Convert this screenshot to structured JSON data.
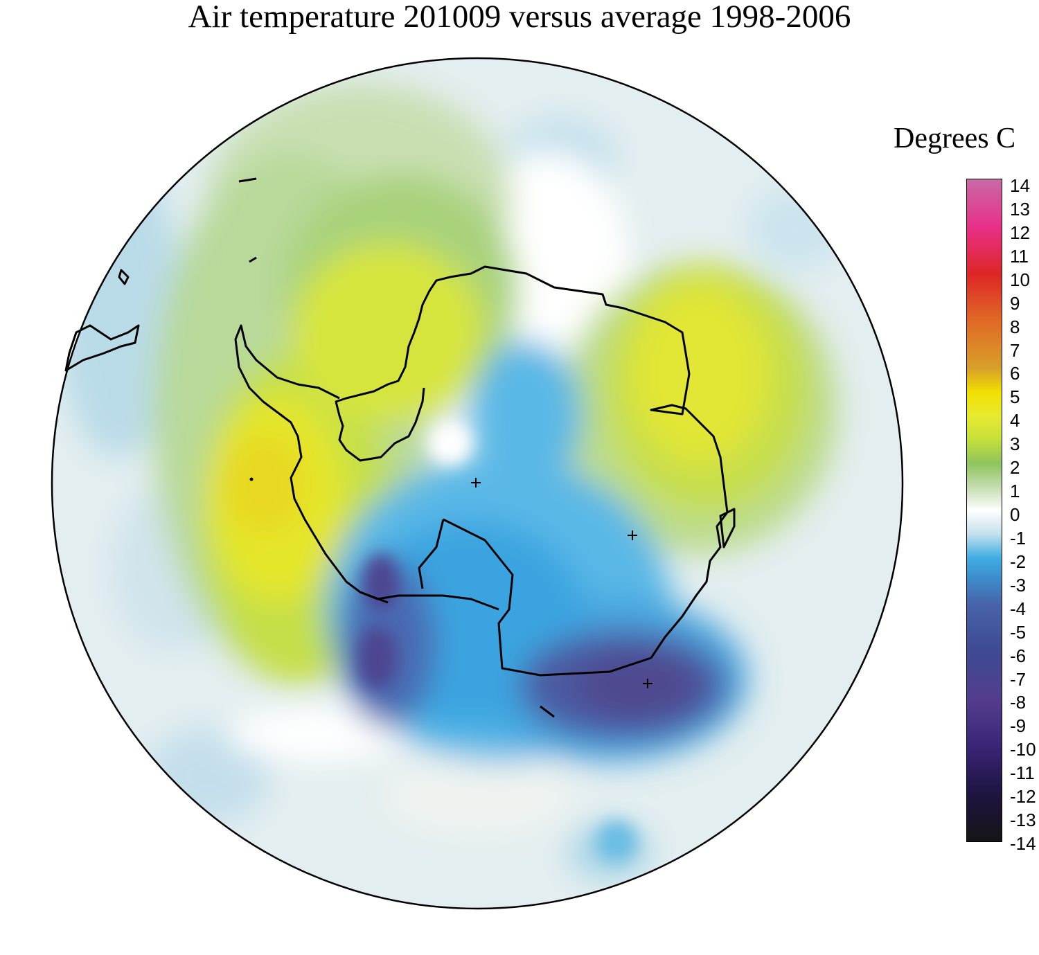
{
  "title": "Air temperature 201009 versus average 1998-2006",
  "legend": {
    "title": "Degrees C",
    "ticks": [
      "14",
      "13",
      "12",
      "11",
      "10",
      "9",
      "8",
      "7",
      "6",
      "5",
      "4",
      "3",
      "2",
      "1",
      "0",
      "-1",
      "-2",
      "-3",
      "-4",
      "-5",
      "-6",
      "-7",
      "-8",
      "-9",
      "-10",
      "-11",
      "-12",
      "-13",
      "-14"
    ],
    "range": [
      -14,
      14
    ],
    "colors": {
      "14": "#c86aa6",
      "12": "#e8308a",
      "10": "#dd2626",
      "8": "#e06a26",
      "6": "#d8a02a",
      "5": "#f0e000",
      "4": "#e8ea30",
      "3": "#c6e03a",
      "2": "#8fc45c",
      "1": "#c4dcae",
      "0": "#ffffff",
      "-1": "#c4e0ec",
      "-2": "#40aee2",
      "-3": "#3c88c8",
      "-4": "#4862a8",
      "-6": "#3e4a92",
      "-8": "#533d8c",
      "-10": "#3a2476",
      "-12": "#1e1440",
      "-14": "#151515"
    }
  }
}
